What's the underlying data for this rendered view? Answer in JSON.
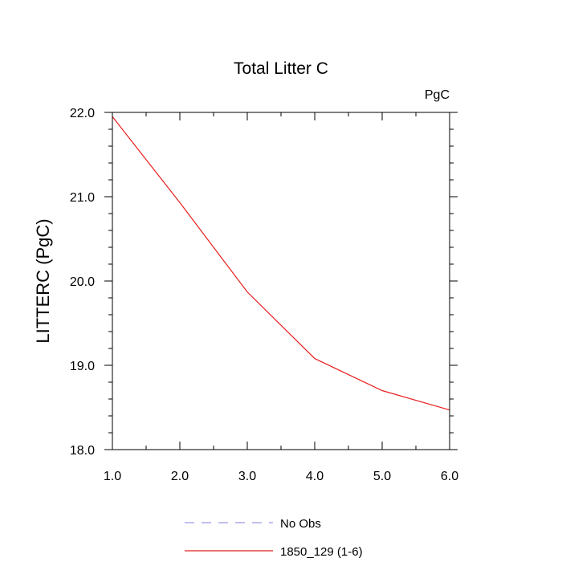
{
  "chart_data": {
    "type": "line",
    "title": "Total Litter C",
    "units_label": "PgC",
    "xlabel": "",
    "ylabel": "LITTERC  (PgC)",
    "xlim": [
      1.0,
      6.0
    ],
    "ylim": [
      18.0,
      22.0
    ],
    "x_ticks": [
      "1.0",
      "2.0",
      "3.0",
      "4.0",
      "5.0",
      "6.0"
    ],
    "y_ticks": [
      "18.0",
      "19.0",
      "20.0",
      "21.0",
      "22.0"
    ],
    "grid": false,
    "legend_position": "bottom-center",
    "series": [
      {
        "name": "No Obs",
        "color": "#9a9ae6",
        "style": "dashed",
        "x": [],
        "y": []
      },
      {
        "name": "1850_129 (1-6)",
        "color": "#e81e1e",
        "style": "solid",
        "x": [
          1,
          2,
          3,
          4,
          5,
          6
        ],
        "y": [
          21.95,
          20.93,
          19.87,
          19.08,
          18.7,
          18.47
        ]
      }
    ]
  }
}
